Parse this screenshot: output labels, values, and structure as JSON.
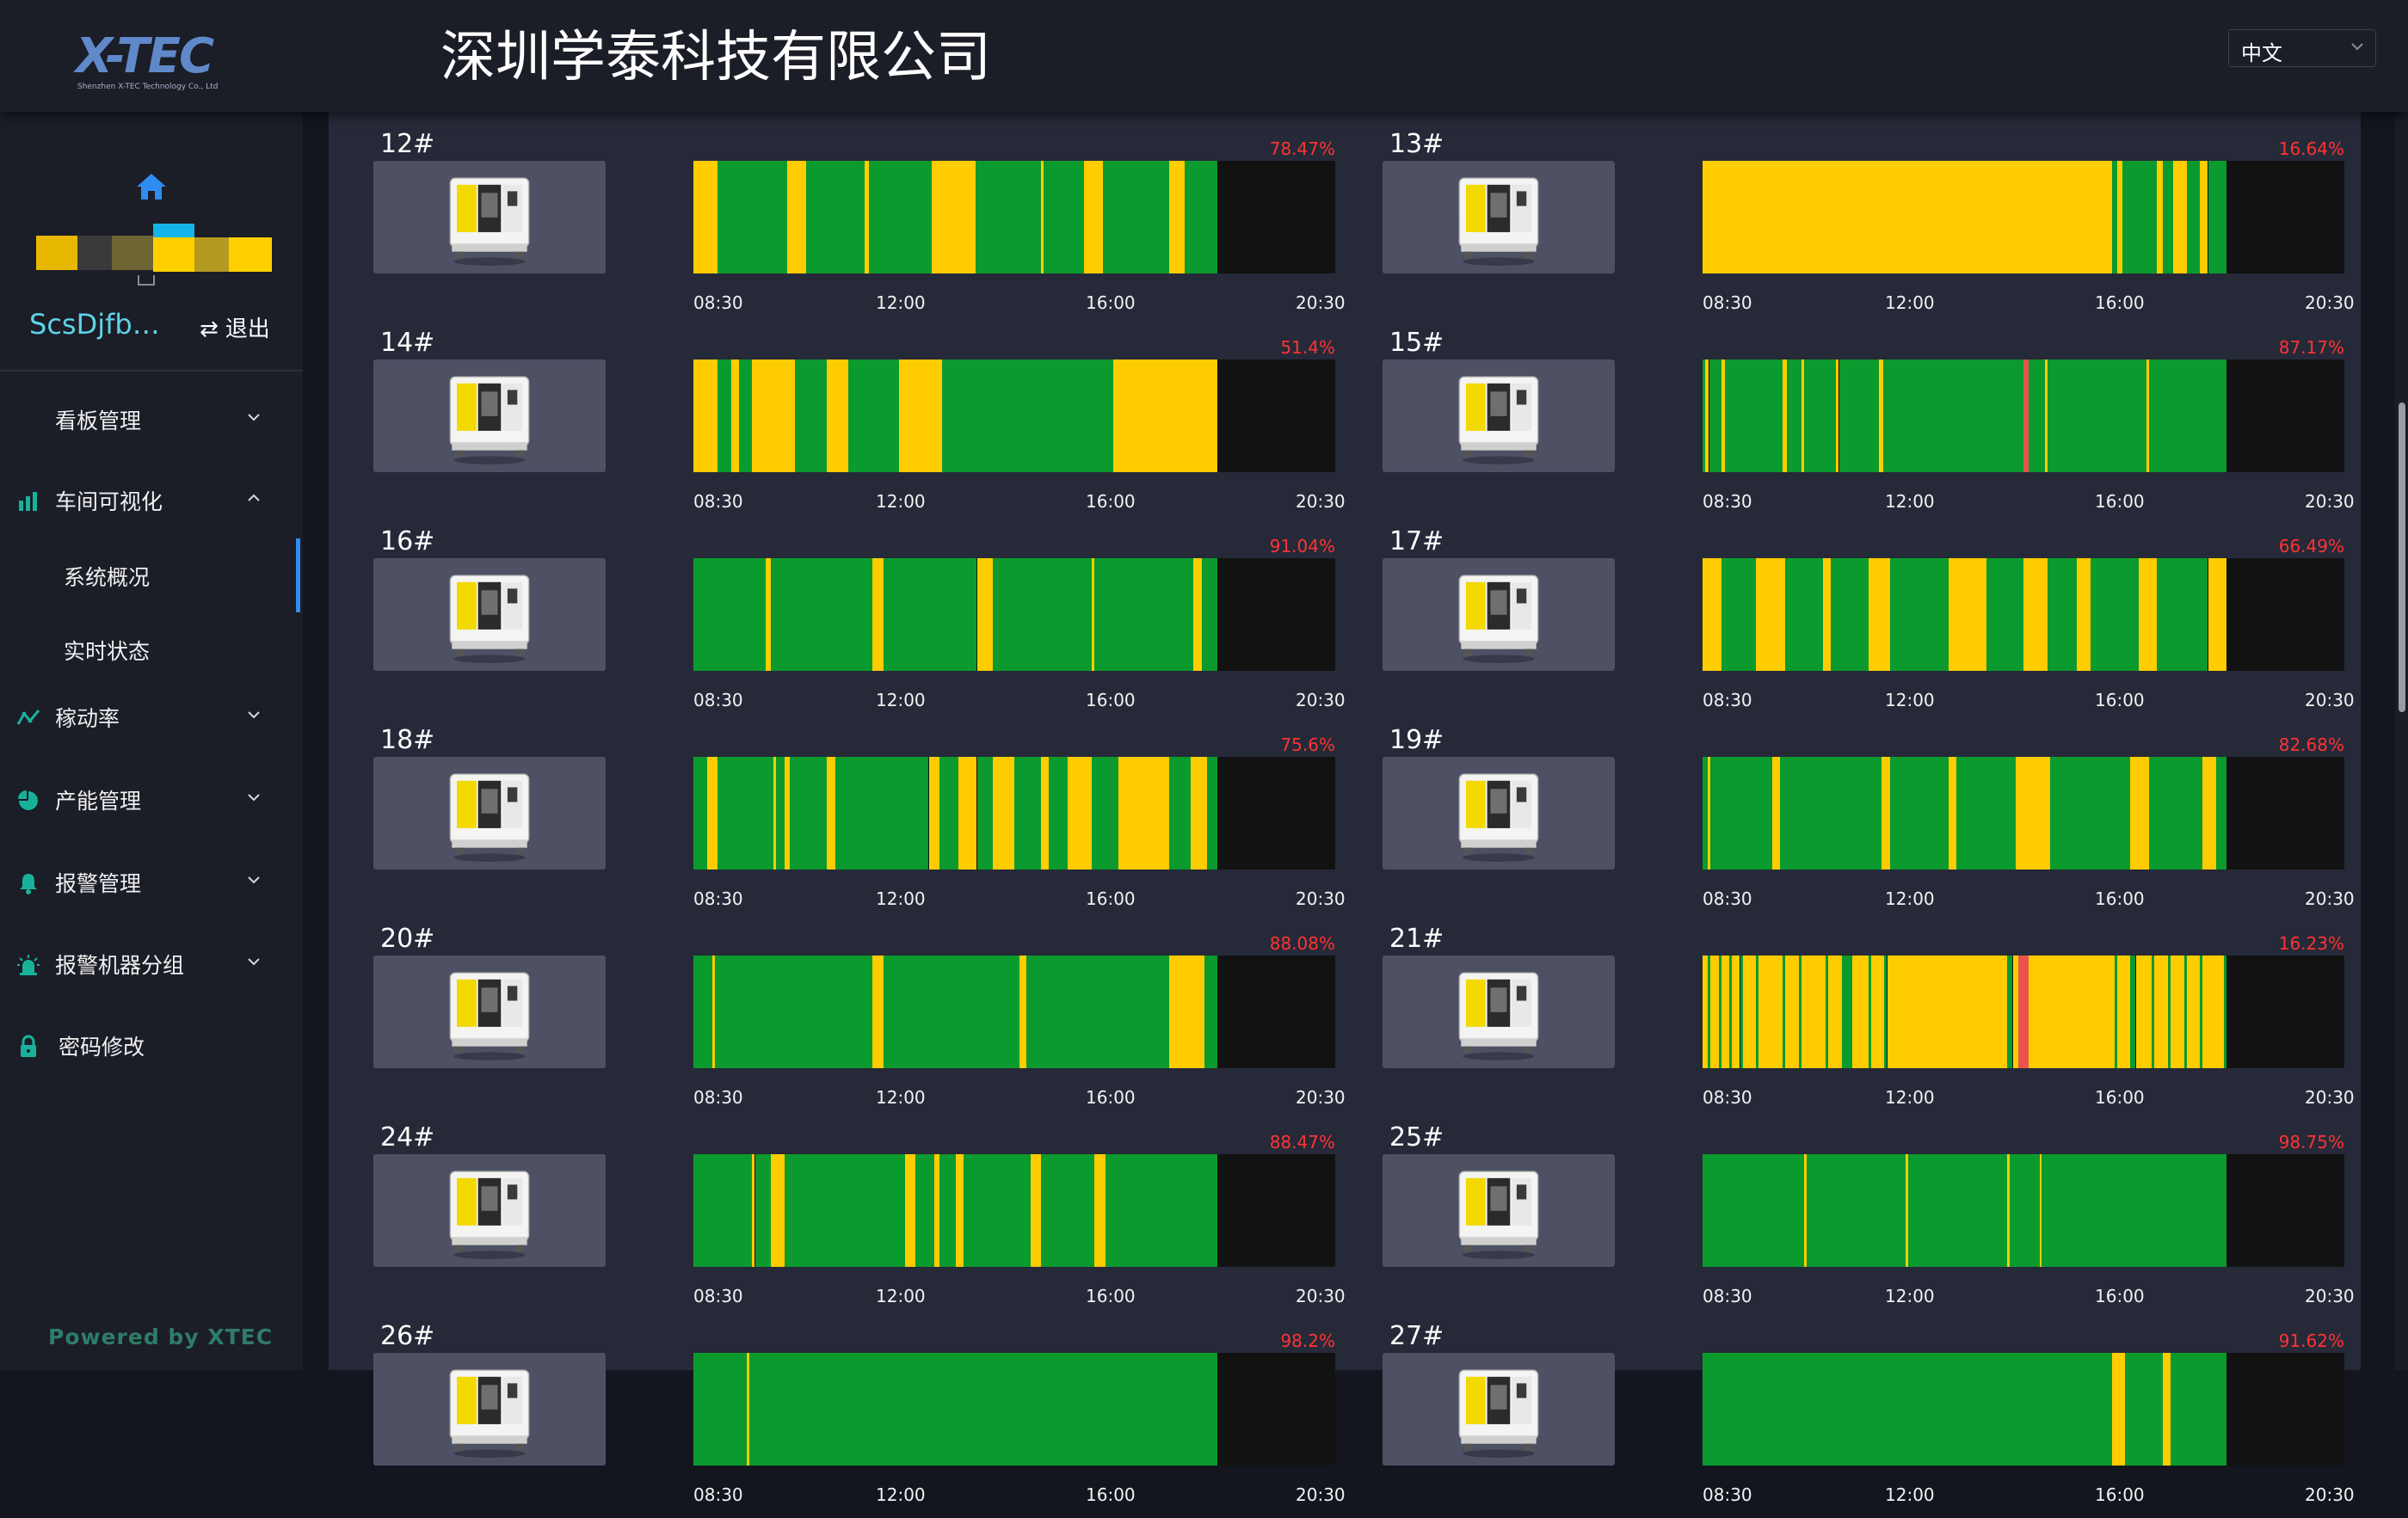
{
  "header": {
    "logo_text": "X-TEC",
    "logo_subtext": "Shenzhen X-TEC Technology Co., Ltd",
    "company_title": "深圳学泰科技有限公司",
    "language": "中文"
  },
  "sidebar": {
    "username": "ScsDjfb…",
    "logout_label": "退出",
    "menu": [
      {
        "label": "看板管理",
        "icon": "board-icon"
      },
      {
        "label": "车间可视化",
        "icon": "bar-chart-icon"
      },
      {
        "label": "系统概况"
      },
      {
        "label": "实时状态"
      },
      {
        "label": "稼动率",
        "icon": "line-chart-icon"
      },
      {
        "label": "产能管理",
        "icon": "pie-chart-icon"
      },
      {
        "label": "报警管理",
        "icon": "bell-icon"
      },
      {
        "label": "报警机器分组",
        "icon": "alarm-light-icon"
      },
      {
        "label": "密码修改",
        "icon": "lock-icon"
      }
    ],
    "powered_by": "Powered by XTEC"
  },
  "colors": {
    "running": "#0a9a2e",
    "idle": "#ffcc00",
    "alarm": "#e8544a",
    "offline": "#121212",
    "percent": "#ff3333"
  },
  "time_axis": {
    "ticks": [
      "08:30",
      "12:00",
      "16:00",
      "20:30"
    ],
    "tick_hours": [
      8.5,
      12,
      16,
      20.5
    ]
  },
  "machines": [
    {
      "name": "12#",
      "utilization": "78.47%",
      "end": 18.3,
      "segments": [
        [
          "idle",
          8.5,
          8.95
        ],
        [
          "run",
          8.95,
          10.25
        ],
        [
          "idle",
          10.25,
          10.6
        ],
        [
          "run",
          10.6,
          11.7
        ],
        [
          "idle",
          11.7,
          11.78
        ],
        [
          "run",
          11.78,
          12.95
        ],
        [
          "idle",
          12.95,
          13.78
        ],
        [
          "run",
          13.78,
          15.0
        ],
        [
          "idle",
          15.0,
          15.05
        ],
        [
          "run",
          15.05,
          15.8
        ],
        [
          "idle",
          15.8,
          16.15
        ],
        [
          "run",
          16.15,
          17.4
        ],
        [
          "idle",
          17.4,
          17.68
        ],
        [
          "run",
          17.68,
          18.3
        ]
      ]
    },
    {
      "name": "13#",
      "utilization": "16.64%",
      "end": 18.3,
      "segments": [
        [
          "idle",
          8.5,
          16.15
        ],
        [
          "run",
          16.15,
          16.25
        ],
        [
          "idle",
          16.25,
          16.35
        ],
        [
          "run",
          16.35,
          17.0
        ],
        [
          "idle",
          17.0,
          17.1
        ],
        [
          "run",
          17.1,
          17.3
        ],
        [
          "idle",
          17.3,
          17.55
        ],
        [
          "run",
          17.55,
          17.8
        ],
        [
          "idle",
          17.8,
          17.95
        ],
        [
          "run",
          17.95,
          18.3
        ]
      ]
    },
    {
      "name": "14#",
      "utilization": "51.4%",
      "end": 18.3,
      "segments": [
        [
          "idle",
          8.5,
          8.95
        ],
        [
          "run",
          8.95,
          9.2
        ],
        [
          "idle",
          9.2,
          9.35
        ],
        [
          "run",
          9.35,
          9.6
        ],
        [
          "idle",
          9.6,
          10.4
        ],
        [
          "run",
          10.4,
          11.0
        ],
        [
          "idle",
          11.0,
          11.4
        ],
        [
          "run",
          11.4,
          12.35
        ],
        [
          "idle",
          12.35,
          13.15
        ],
        [
          "run",
          13.15,
          16.35
        ],
        [
          "idle",
          16.35,
          18.3
        ]
      ]
    },
    {
      "name": "15#",
      "utilization": "87.17%",
      "end": 18.3,
      "segments": [
        [
          "run",
          8.5,
          8.55
        ],
        [
          "idle",
          8.55,
          8.62
        ],
        [
          "run",
          8.62,
          8.85
        ],
        [
          "idle",
          8.85,
          8.92
        ],
        [
          "run",
          8.92,
          10.0
        ],
        [
          "idle",
          10.0,
          10.07
        ],
        [
          "run",
          10.07,
          10.35
        ],
        [
          "idle",
          10.35,
          10.4
        ],
        [
          "run",
          10.4,
          11.0
        ],
        [
          "idle",
          11.0,
          11.05
        ],
        [
          "run",
          11.05,
          11.8
        ],
        [
          "idle",
          11.8,
          11.87
        ],
        [
          "run",
          11.87,
          14.5
        ],
        [
          "alarm",
          14.5,
          14.6
        ],
        [
          "run",
          14.6,
          14.9
        ],
        [
          "idle",
          14.9,
          14.95
        ],
        [
          "run",
          14.95,
          16.8
        ],
        [
          "idle",
          16.8,
          16.85
        ],
        [
          "run",
          16.85,
          18.3
        ]
      ]
    },
    {
      "name": "16#",
      "utilization": "91.04%",
      "end": 18.3,
      "segments": [
        [
          "run",
          8.5,
          9.85
        ],
        [
          "idle",
          9.85,
          9.95
        ],
        [
          "run",
          9.95,
          11.85
        ],
        [
          "idle",
          11.85,
          12.05
        ],
        [
          "run",
          12.05,
          13.8
        ],
        [
          "idle",
          13.8,
          14.1
        ],
        [
          "run",
          14.1,
          15.95
        ],
        [
          "idle",
          15.95,
          16.0
        ],
        [
          "run",
          16.0,
          17.85
        ],
        [
          "idle",
          17.85,
          18.0
        ],
        [
          "run",
          18.0,
          18.3
        ]
      ]
    },
    {
      "name": "17#",
      "utilization": "66.49%",
      "end": 18.3,
      "segments": [
        [
          "idle",
          8.5,
          8.85
        ],
        [
          "run",
          8.85,
          9.5
        ],
        [
          "idle",
          9.5,
          10.05
        ],
        [
          "run",
          10.05,
          10.75
        ],
        [
          "idle",
          10.75,
          10.9
        ],
        [
          "run",
          10.9,
          11.6
        ],
        [
          "idle",
          11.6,
          12.0
        ],
        [
          "run",
          12.0,
          13.1
        ],
        [
          "idle",
          13.1,
          13.8
        ],
        [
          "run",
          13.8,
          14.5
        ],
        [
          "idle",
          14.5,
          14.95
        ],
        [
          "run",
          14.95,
          15.5
        ],
        [
          "idle",
          15.5,
          15.75
        ],
        [
          "run",
          15.75,
          16.65
        ],
        [
          "idle",
          16.65,
          17.0
        ],
        [
          "run",
          17.0,
          17.95
        ],
        [
          "idle",
          17.95,
          18.3
        ]
      ]
    },
    {
      "name": "18#",
      "utilization": "75.6%",
      "end": 18.3,
      "segments": [
        [
          "run",
          8.5,
          8.75
        ],
        [
          "idle",
          8.75,
          8.95
        ],
        [
          "run",
          8.95,
          10.0
        ],
        [
          "idle",
          10.0,
          10.05
        ],
        [
          "run",
          10.05,
          10.2
        ],
        [
          "idle",
          10.2,
          10.3
        ],
        [
          "run",
          10.3,
          11.0
        ],
        [
          "idle",
          11.0,
          11.15
        ],
        [
          "run",
          11.15,
          12.9
        ],
        [
          "idle",
          12.9,
          13.1
        ],
        [
          "run",
          13.1,
          13.45
        ],
        [
          "idle",
          13.45,
          13.8
        ],
        [
          "run",
          13.8,
          14.1
        ],
        [
          "idle",
          14.1,
          14.5
        ],
        [
          "run",
          14.5,
          15.0
        ],
        [
          "idle",
          15.0,
          15.15
        ],
        [
          "run",
          15.15,
          15.5
        ],
        [
          "idle",
          15.5,
          15.95
        ],
        [
          "run",
          15.95,
          16.45
        ],
        [
          "idle",
          16.45,
          17.4
        ],
        [
          "run",
          17.4,
          17.8
        ],
        [
          "idle",
          17.8,
          18.1
        ],
        [
          "run",
          18.1,
          18.3
        ]
      ]
    },
    {
      "name": "19#",
      "utilization": "82.68%",
      "end": 18.3,
      "segments": [
        [
          "run",
          8.5,
          8.6
        ],
        [
          "idle",
          8.6,
          8.65
        ],
        [
          "run",
          8.65,
          9.8
        ],
        [
          "idle",
          9.8,
          9.95
        ],
        [
          "run",
          9.95,
          11.85
        ],
        [
          "idle",
          11.85,
          12.0
        ],
        [
          "run",
          12.0,
          13.1
        ],
        [
          "idle",
          13.1,
          13.25
        ],
        [
          "run",
          13.25,
          14.35
        ],
        [
          "idle",
          14.35,
          15.0
        ],
        [
          "run",
          15.0,
          16.5
        ],
        [
          "idle",
          16.5,
          16.85
        ],
        [
          "run",
          16.85,
          17.85
        ],
        [
          "idle",
          17.85,
          18.1
        ],
        [
          "run",
          18.1,
          18.3
        ]
      ]
    },
    {
      "name": "20#",
      "utilization": "88.08%",
      "end": 18.3,
      "segments": [
        [
          "run",
          8.5,
          8.85
        ],
        [
          "idle",
          8.85,
          8.9
        ],
        [
          "run",
          8.9,
          11.85
        ],
        [
          "idle",
          11.85,
          12.05
        ],
        [
          "run",
          12.05,
          14.6
        ],
        [
          "idle",
          14.6,
          14.72
        ],
        [
          "run",
          14.72,
          17.4
        ],
        [
          "idle",
          17.4,
          18.05
        ],
        [
          "run",
          18.05,
          18.3
        ]
      ]
    },
    {
      "name": "21#",
      "utilization": "16.23%",
      "end": 18.3,
      "segments": [
        [
          "idle",
          8.5,
          8.6
        ],
        [
          "run",
          8.6,
          8.65
        ],
        [
          "idle",
          8.65,
          8.8
        ],
        [
          "run",
          8.8,
          8.85
        ],
        [
          "idle",
          8.85,
          9.0
        ],
        [
          "run",
          9.0,
          9.05
        ],
        [
          "idle",
          9.05,
          9.2
        ],
        [
          "run",
          9.2,
          9.25
        ],
        [
          "idle",
          9.25,
          9.5
        ],
        [
          "run",
          9.5,
          9.55
        ],
        [
          "idle",
          9.55,
          10.0
        ],
        [
          "run",
          10.0,
          10.05
        ],
        [
          "idle",
          10.05,
          10.3
        ],
        [
          "run",
          10.3,
          10.35
        ],
        [
          "idle",
          10.35,
          10.8
        ],
        [
          "run",
          10.8,
          10.85
        ],
        [
          "idle",
          10.85,
          11.1
        ],
        [
          "run",
          11.1,
          11.3
        ],
        [
          "idle",
          11.3,
          11.6
        ],
        [
          "run",
          11.6,
          11.65
        ],
        [
          "idle",
          11.65,
          11.9
        ],
        [
          "run",
          11.9,
          11.95
        ],
        [
          "idle",
          11.95,
          14.2
        ],
        [
          "run",
          14.2,
          14.3
        ],
        [
          "idle",
          14.3,
          14.4
        ],
        [
          "alarm",
          14.4,
          14.6
        ],
        [
          "idle",
          14.6,
          16.2
        ],
        [
          "run",
          16.2,
          16.25
        ],
        [
          "idle",
          16.25,
          16.5
        ],
        [
          "run",
          16.5,
          16.6
        ],
        [
          "idle",
          16.6,
          16.9
        ],
        [
          "run",
          16.9,
          16.95
        ],
        [
          "idle",
          16.95,
          17.2
        ],
        [
          "run",
          17.2,
          17.25
        ],
        [
          "idle",
          17.25,
          17.5
        ],
        [
          "run",
          17.5,
          17.55
        ],
        [
          "idle",
          17.55,
          17.8
        ],
        [
          "run",
          17.8,
          17.85
        ],
        [
          "idle",
          17.85,
          18.25
        ],
        [
          "run",
          18.25,
          18.3
        ]
      ]
    },
    {
      "name": "24#",
      "utilization": "88.47%",
      "end": 18.3,
      "segments": [
        [
          "run",
          8.5,
          9.6
        ],
        [
          "idle",
          9.6,
          9.65
        ],
        [
          "run",
          9.65,
          9.95
        ],
        [
          "idle",
          9.95,
          10.2
        ],
        [
          "run",
          10.2,
          12.45
        ],
        [
          "idle",
          12.45,
          12.65
        ],
        [
          "run",
          12.65,
          13.0
        ],
        [
          "idle",
          13.0,
          13.1
        ],
        [
          "run",
          13.1,
          13.4
        ],
        [
          "idle",
          13.4,
          13.55
        ],
        [
          "run",
          13.55,
          14.8
        ],
        [
          "idle",
          14.8,
          15.0
        ],
        [
          "run",
          15.0,
          16.0
        ],
        [
          "idle",
          16.0,
          16.2
        ],
        [
          "run",
          16.2,
          18.3
        ]
      ]
    },
    {
      "name": "25#",
      "utilization": "98.75%",
      "end": 18.3,
      "segments": [
        [
          "run",
          8.5,
          10.4
        ],
        [
          "idle",
          10.4,
          10.44
        ],
        [
          "run",
          10.44,
          12.3
        ],
        [
          "idle",
          12.3,
          12.34
        ],
        [
          "run",
          12.34,
          14.2
        ],
        [
          "idle",
          14.2,
          14.24
        ],
        [
          "run",
          14.24,
          14.8
        ],
        [
          "idle",
          14.8,
          14.83
        ],
        [
          "run",
          14.83,
          18.3
        ]
      ]
    },
    {
      "name": "26#",
      "utilization": "98.2%",
      "end": 18.3,
      "segments": [
        [
          "run",
          8.5,
          9.5
        ],
        [
          "idle",
          9.5,
          9.55
        ],
        [
          "run",
          9.55,
          18.3
        ]
      ]
    },
    {
      "name": "27#",
      "utilization": "91.62%",
      "end": 18.3,
      "segments": [
        [
          "run",
          8.5,
          16.15
        ],
        [
          "idle",
          16.15,
          16.4
        ],
        [
          "run",
          16.4,
          17.1
        ],
        [
          "idle",
          17.1,
          17.25
        ],
        [
          "run",
          17.25,
          18.3
        ]
      ]
    }
  ]
}
